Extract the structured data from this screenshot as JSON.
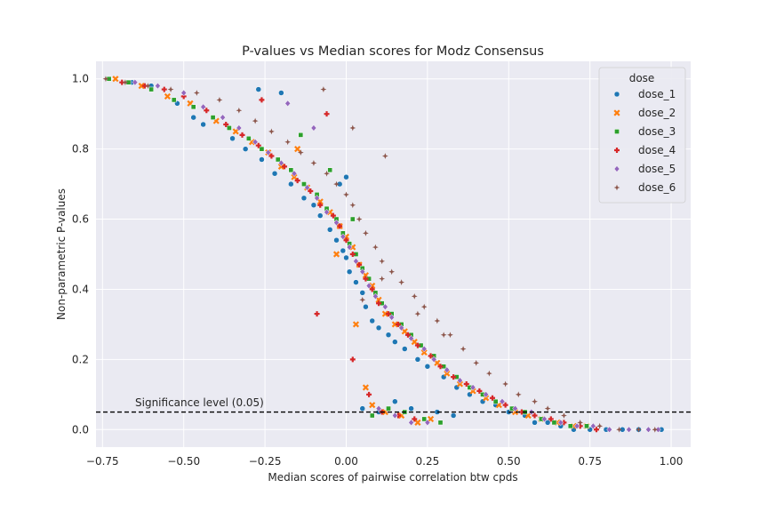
{
  "colors": {
    "plot_background": "#eaeaf2",
    "grid": "#ffffff",
    "dose_1": "#1f77b4",
    "dose_2": "#ff7f0e",
    "dose_3": "#2ca02c",
    "dose_4": "#d62728",
    "dose_5": "#9467bd",
    "dose_6": "#8c564b",
    "threshold_line": "#000000"
  },
  "chart_data": {
    "type": "scatter",
    "title": "P-values vs Median scores for Modz Consensus",
    "xlabel": "Median scores of pairwise correlation btw cpds",
    "ylabel": "Non-parametric P-values",
    "xlim": [
      -0.77,
      1.06
    ],
    "ylim": [
      -0.05,
      1.05
    ],
    "xticks": [
      -0.75,
      -0.5,
      -0.25,
      0.0,
      0.25,
      0.5,
      0.75,
      1.0
    ],
    "xtick_labels": [
      "−0.75",
      "−0.50",
      "−0.25",
      "0.00",
      "0.25",
      "0.50",
      "0.75",
      "1.00"
    ],
    "yticks": [
      0.0,
      0.2,
      0.4,
      0.6,
      0.8,
      1.0
    ],
    "ytick_labels": [
      "0.0",
      "0.2",
      "0.4",
      "0.6",
      "0.8",
      "1.0"
    ],
    "grid": true,
    "legend": {
      "title": "dose",
      "position": "top-right"
    },
    "threshold": {
      "y": 0.05,
      "label": "Significance level (0.05)",
      "style": "dashed"
    },
    "series": [
      {
        "name": "dose_1",
        "marker": "circle",
        "x": [
          -0.66,
          -0.6,
          -0.52,
          -0.47,
          -0.44,
          -0.35,
          -0.31,
          -0.26,
          -0.22,
          -0.17,
          -0.13,
          -0.1,
          -0.08,
          -0.05,
          -0.03,
          -0.01,
          0.0,
          0.01,
          0.03,
          0.05,
          0.06,
          0.08,
          0.1,
          0.13,
          0.15,
          0.18,
          0.22,
          0.25,
          0.3,
          0.34,
          0.38,
          0.42,
          0.46,
          0.5,
          0.55,
          0.58,
          0.62,
          0.66,
          0.7,
          0.75,
          0.8,
          0.85,
          0.9,
          0.97,
          0.05,
          0.1,
          0.15,
          0.2,
          0.28,
          0.33,
          0.0,
          -0.02,
          -0.27,
          -0.2
        ],
        "y": [
          0.99,
          0.98,
          0.93,
          0.89,
          0.87,
          0.83,
          0.8,
          0.77,
          0.73,
          0.7,
          0.66,
          0.64,
          0.61,
          0.57,
          0.54,
          0.51,
          0.49,
          0.45,
          0.42,
          0.39,
          0.35,
          0.31,
          0.29,
          0.27,
          0.25,
          0.23,
          0.2,
          0.18,
          0.15,
          0.12,
          0.1,
          0.08,
          0.07,
          0.05,
          0.04,
          0.02,
          0.02,
          0.01,
          0.0,
          0.0,
          0.0,
          0.0,
          0.0,
          0.0,
          0.06,
          0.05,
          0.08,
          0.06,
          0.05,
          0.04,
          0.72,
          0.7,
          0.97,
          0.96
        ]
      },
      {
        "name": "dose_2",
        "marker": "x",
        "x": [
          -0.71,
          -0.63,
          -0.55,
          -0.48,
          -0.4,
          -0.34,
          -0.29,
          -0.24,
          -0.2,
          -0.16,
          -0.12,
          -0.08,
          -0.05,
          -0.02,
          0.0,
          0.02,
          0.04,
          0.06,
          0.08,
          0.1,
          0.12,
          0.15,
          0.18,
          0.21,
          0.24,
          0.28,
          0.31,
          0.35,
          0.39,
          0.43,
          0.47,
          0.52,
          0.56,
          0.6,
          0.65,
          0.7,
          0.74,
          0.08,
          0.12,
          0.17,
          0.22,
          0.26,
          0.06,
          0.03,
          -0.03,
          -0.15
        ],
        "y": [
          1.0,
          0.98,
          0.95,
          0.93,
          0.88,
          0.85,
          0.82,
          0.79,
          0.75,
          0.72,
          0.69,
          0.65,
          0.62,
          0.58,
          0.55,
          0.52,
          0.47,
          0.44,
          0.41,
          0.37,
          0.33,
          0.3,
          0.28,
          0.25,
          0.22,
          0.19,
          0.16,
          0.13,
          0.11,
          0.09,
          0.07,
          0.05,
          0.04,
          0.03,
          0.02,
          0.01,
          0.01,
          0.07,
          0.05,
          0.04,
          0.02,
          0.03,
          0.12,
          0.3,
          0.5,
          0.8
        ]
      },
      {
        "name": "dose_3",
        "marker": "square",
        "x": [
          -0.73,
          -0.67,
          -0.6,
          -0.53,
          -0.47,
          -0.41,
          -0.36,
          -0.3,
          -0.26,
          -0.21,
          -0.17,
          -0.13,
          -0.09,
          -0.06,
          -0.03,
          -0.01,
          0.01,
          0.03,
          0.05,
          0.07,
          0.09,
          0.11,
          0.14,
          0.17,
          0.2,
          0.23,
          0.27,
          0.3,
          0.34,
          0.38,
          0.42,
          0.46,
          0.51,
          0.55,
          0.6,
          0.64,
          0.69,
          0.74,
          0.08,
          0.13,
          0.18,
          0.24,
          0.29,
          -0.14,
          -0.05,
          0.02
        ],
        "y": [
          1.0,
          0.99,
          0.97,
          0.94,
          0.92,
          0.89,
          0.86,
          0.83,
          0.8,
          0.77,
          0.74,
          0.7,
          0.67,
          0.63,
          0.6,
          0.56,
          0.53,
          0.5,
          0.46,
          0.43,
          0.39,
          0.36,
          0.33,
          0.3,
          0.27,
          0.24,
          0.21,
          0.18,
          0.15,
          0.12,
          0.1,
          0.08,
          0.06,
          0.05,
          0.03,
          0.02,
          0.01,
          0.01,
          0.04,
          0.06,
          0.05,
          0.03,
          0.02,
          0.84,
          0.74,
          0.6
        ]
      },
      {
        "name": "dose_4",
        "marker": "plus",
        "x": [
          -0.69,
          -0.62,
          -0.56,
          -0.5,
          -0.43,
          -0.37,
          -0.32,
          -0.27,
          -0.23,
          -0.19,
          -0.15,
          -0.11,
          -0.08,
          -0.04,
          -0.02,
          0.0,
          0.02,
          0.04,
          0.06,
          0.08,
          0.1,
          0.13,
          0.16,
          0.19,
          0.22,
          0.26,
          0.29,
          0.33,
          0.37,
          0.41,
          0.45,
          0.49,
          0.54,
          0.58,
          0.63,
          0.67,
          0.72,
          0.77,
          -0.09,
          0.02,
          0.07,
          0.11,
          0.16,
          0.21,
          -0.06,
          -0.26
        ],
        "y": [
          0.99,
          0.98,
          0.97,
          0.95,
          0.91,
          0.87,
          0.84,
          0.81,
          0.78,
          0.75,
          0.71,
          0.68,
          0.64,
          0.61,
          0.58,
          0.54,
          0.5,
          0.47,
          0.43,
          0.4,
          0.36,
          0.33,
          0.3,
          0.27,
          0.24,
          0.21,
          0.18,
          0.15,
          0.13,
          0.11,
          0.09,
          0.07,
          0.05,
          0.04,
          0.03,
          0.02,
          0.01,
          0.0,
          0.33,
          0.2,
          0.1,
          0.05,
          0.04,
          0.03,
          0.9,
          0.94
        ]
      },
      {
        "name": "dose_5",
        "marker": "diamond",
        "x": [
          -0.65,
          -0.58,
          -0.5,
          -0.44,
          -0.38,
          -0.33,
          -0.28,
          -0.24,
          -0.2,
          -0.16,
          -0.12,
          -0.09,
          -0.06,
          -0.03,
          -0.01,
          0.01,
          0.03,
          0.05,
          0.07,
          0.09,
          0.12,
          0.14,
          0.17,
          0.2,
          0.24,
          0.27,
          0.31,
          0.35,
          0.39,
          0.43,
          0.48,
          0.52,
          0.57,
          0.61,
          0.66,
          0.71,
          0.76,
          0.81,
          0.87,
          0.93,
          0.96,
          0.1,
          0.15,
          0.2,
          0.25,
          -0.18,
          -0.1
        ],
        "y": [
          0.99,
          0.98,
          0.96,
          0.92,
          0.89,
          0.86,
          0.82,
          0.79,
          0.76,
          0.73,
          0.69,
          0.66,
          0.62,
          0.59,
          0.55,
          0.52,
          0.48,
          0.45,
          0.41,
          0.38,
          0.35,
          0.32,
          0.29,
          0.26,
          0.23,
          0.2,
          0.17,
          0.14,
          0.12,
          0.1,
          0.08,
          0.06,
          0.05,
          0.03,
          0.02,
          0.01,
          0.01,
          0.0,
          0.0,
          0.0,
          0.0,
          0.06,
          0.04,
          0.02,
          0.02,
          0.93,
          0.86
        ]
      },
      {
        "name": "dose_6",
        "marker": "star",
        "x": [
          -0.74,
          -0.68,
          -0.61,
          -0.54,
          -0.46,
          -0.39,
          -0.33,
          -0.28,
          -0.23,
          -0.18,
          -0.14,
          -0.1,
          -0.06,
          -0.03,
          0.0,
          0.02,
          0.04,
          0.06,
          0.09,
          0.11,
          0.14,
          0.17,
          0.21,
          0.24,
          0.28,
          0.32,
          0.36,
          0.4,
          0.44,
          0.49,
          0.53,
          0.58,
          0.62,
          0.67,
          0.72,
          0.78,
          0.84,
          0.9,
          0.95,
          -0.07,
          0.02,
          0.12,
          0.11,
          0.05,
          0.22,
          0.3
        ],
        "y": [
          1.0,
          0.99,
          0.98,
          0.97,
          0.96,
          0.94,
          0.91,
          0.88,
          0.85,
          0.82,
          0.79,
          0.76,
          0.73,
          0.7,
          0.67,
          0.64,
          0.6,
          0.56,
          0.52,
          0.48,
          0.45,
          0.42,
          0.38,
          0.35,
          0.31,
          0.27,
          0.23,
          0.19,
          0.16,
          0.13,
          0.1,
          0.08,
          0.06,
          0.04,
          0.02,
          0.01,
          0.0,
          0.0,
          0.0,
          0.97,
          0.86,
          0.78,
          0.43,
          0.37,
          0.33,
          0.27
        ]
      }
    ]
  }
}
